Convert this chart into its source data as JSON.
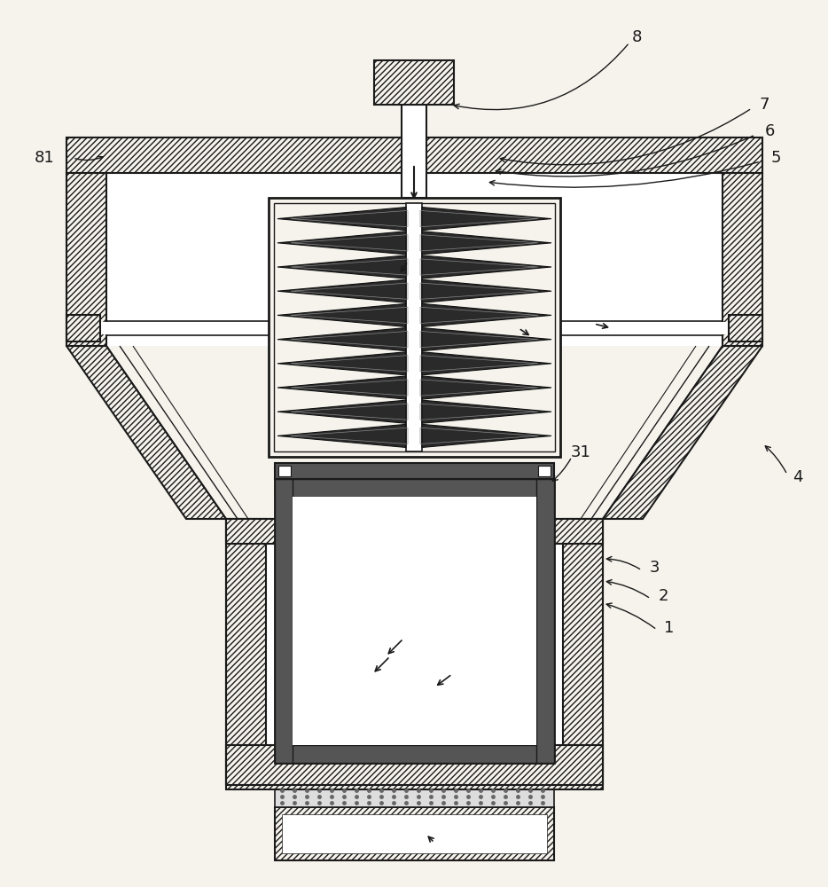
{
  "bg_color": "#f5f3ec",
  "line_color": "#1a1a1a",
  "fig_w": 9.34,
  "fig_h": 10.0,
  "dpi": 100
}
